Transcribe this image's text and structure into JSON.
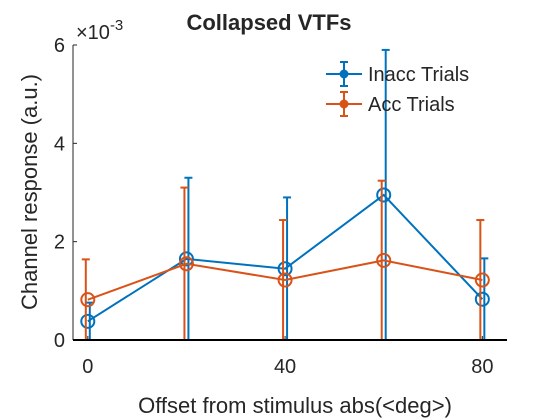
{
  "chart_data": {
    "type": "line",
    "title": "Collapsed VTFs",
    "xlabel": "Offset from stimulus abs(<deg>)",
    "ylabel": "Channel response (a.u.)",
    "y_exponent_base": "×10",
    "y_exponent_power": "-3",
    "x": [
      0,
      20,
      40,
      60,
      80
    ],
    "xlim": [
      -3,
      85
    ],
    "ylim": [
      0,
      6
    ],
    "xticks": [
      0,
      40,
      80
    ],
    "xtick_labels": [
      "0",
      "40",
      "80"
    ],
    "yticks": [
      0,
      2,
      4,
      6
    ],
    "ytick_labels": [
      "0",
      "2",
      "4",
      "6"
    ],
    "grid": false,
    "legend_position": "top-right",
    "series": [
      {
        "name": "Inacc Trials",
        "color": "#0072BD",
        "values": [
          0.38,
          1.65,
          1.45,
          2.95,
          0.83
        ],
        "err_lower": [
          0.38,
          1.65,
          1.45,
          2.95,
          0.83
        ],
        "err_upper": [
          0.38,
          1.65,
          1.45,
          2.95,
          0.83
        ]
      },
      {
        "name": "Acc Trials",
        "color": "#D95319",
        "values": [
          0.82,
          1.55,
          1.22,
          1.62,
          1.22
        ],
        "err_lower": [
          0.82,
          1.55,
          1.22,
          1.62,
          1.22
        ],
        "err_upper": [
          0.82,
          1.55,
          1.22,
          1.62,
          1.22
        ]
      }
    ]
  }
}
